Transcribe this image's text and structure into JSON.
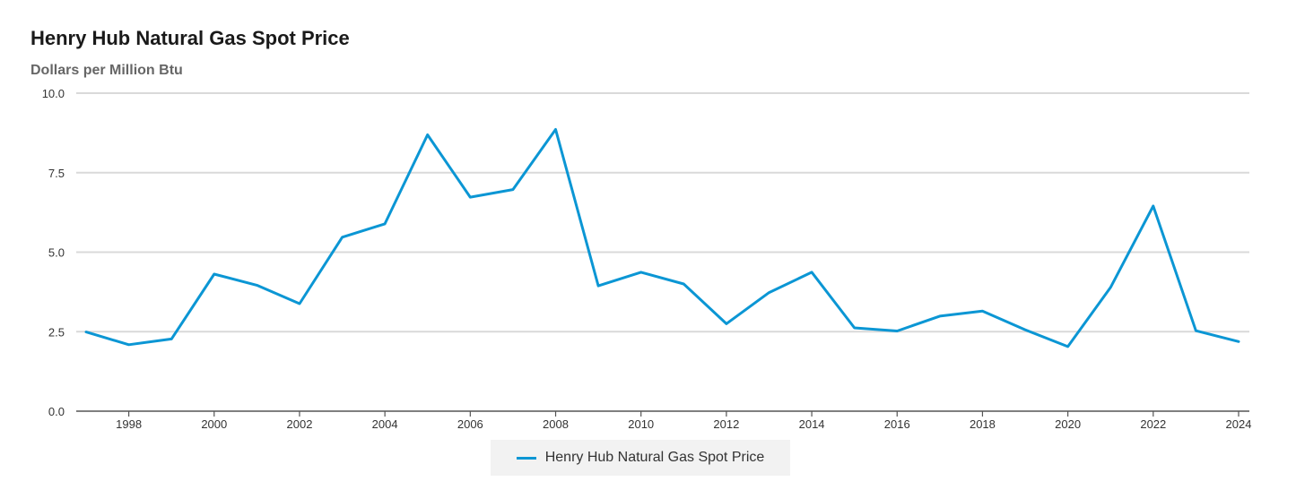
{
  "chart_data": {
    "type": "line",
    "title": "Henry Hub Natural Gas Spot Price",
    "subtitle": "Dollars per Million Btu",
    "xlabel": "",
    "ylabel": "",
    "x": [
      1997,
      1998,
      1999,
      2000,
      2001,
      2002,
      2003,
      2004,
      2005,
      2006,
      2007,
      2008,
      2009,
      2010,
      2011,
      2012,
      2013,
      2014,
      2015,
      2016,
      2017,
      2018,
      2019,
      2020,
      2021,
      2022,
      2023,
      2024
    ],
    "x_ticks": [
      "1998",
      "2000",
      "2002",
      "2004",
      "2006",
      "2008",
      "2010",
      "2012",
      "2014",
      "2016",
      "2018",
      "2020",
      "2022",
      "2024"
    ],
    "y_ticks": [
      "0.0",
      "2.5",
      "5.0",
      "7.5",
      "10.0"
    ],
    "ylim": [
      0,
      10
    ],
    "grid": true,
    "legend_position": "bottom-center",
    "series": [
      {
        "name": "Henry Hub Natural Gas Spot Price",
        "color": "#0b96d4",
        "values": [
          2.49,
          2.09,
          2.27,
          4.31,
          3.96,
          3.38,
          5.47,
          5.89,
          8.69,
          6.73,
          6.97,
          8.86,
          3.94,
          4.37,
          4.0,
          2.75,
          3.73,
          4.37,
          2.62,
          2.52,
          2.99,
          3.15,
          2.56,
          2.03,
          3.89,
          6.45,
          2.53,
          2.19
        ]
      }
    ]
  }
}
